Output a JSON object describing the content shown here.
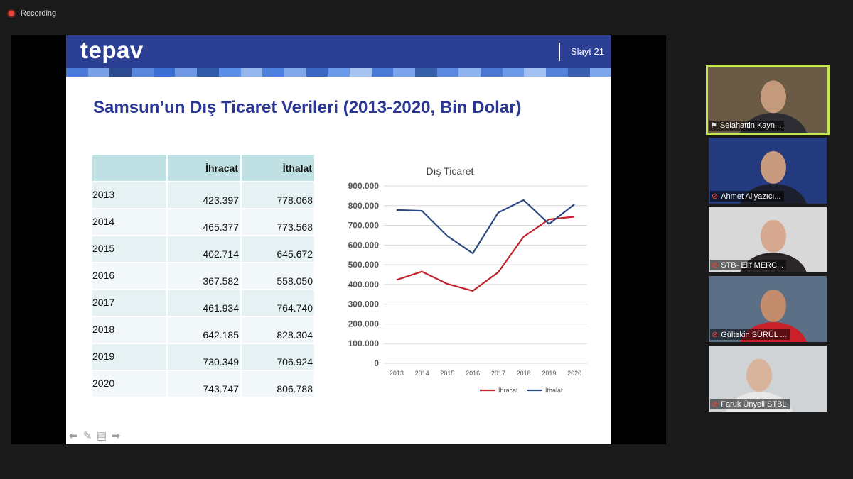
{
  "recording": {
    "label": "Recording"
  },
  "slide": {
    "logo": "tepav",
    "slide_number": "Slayt 21",
    "title": "Samsun’un Dış Ticaret Verileri (2013-2020, Bin Dolar)",
    "stripe_colors": [
      "#4b79d8",
      "#7aa0e8",
      "#2c4b8f",
      "#5a88dc",
      "#3b6fd1",
      "#6f97e4",
      "#2e5aa8",
      "#5b8ee6",
      "#93b6ee",
      "#4f81de",
      "#80a7ea",
      "#3a67c4",
      "#6a99ea",
      "#a6c2f0",
      "#4a7ad6",
      "#7ba4ec",
      "#355ea8",
      "#5c8ae0",
      "#8fb3ef",
      "#4b77d2",
      "#6c98e8",
      "#a3c0f2",
      "#5683da",
      "#3b5fb0",
      "#7ea6ec"
    ],
    "table": {
      "headers": [
        "",
        "İhracat",
        "İthalat"
      ],
      "rows": [
        {
          "year": "2013",
          "ihracat": "423.397",
          "ithalat": "778.068"
        },
        {
          "year": "2014",
          "ihracat": "465.377",
          "ithalat": "773.568"
        },
        {
          "year": "2015",
          "ihracat": "402.714",
          "ithalat": "645.672"
        },
        {
          "year": "2016",
          "ihracat": "367.582",
          "ithalat": "558.050"
        },
        {
          "year": "2017",
          "ihracat": "461.934",
          "ithalat": "764.740"
        },
        {
          "year": "2018",
          "ihracat": "642.185",
          "ithalat": "828.304"
        },
        {
          "year": "2019",
          "ihracat": "730.349",
          "ithalat": "706.924"
        },
        {
          "year": "2020",
          "ihracat": "743.747",
          "ithalat": "806.788"
        }
      ]
    }
  },
  "chart_data": {
    "type": "line",
    "title": "Dış Ticaret",
    "x": [
      "2013",
      "2014",
      "2015",
      "2016",
      "2017",
      "2018",
      "2019",
      "2020"
    ],
    "y_ticks": [
      "0",
      "100.000",
      "200.000",
      "300.000",
      "400.000",
      "500.000",
      "600.000",
      "700.000",
      "800.000",
      "900.000"
    ],
    "ylim": [
      0,
      900000
    ],
    "grid": true,
    "legend": "bottom",
    "series": [
      {
        "name": "İhracat",
        "color": "#c0232c",
        "values": [
          423397,
          465377,
          402714,
          367582,
          461934,
          642185,
          730349,
          743747
        ]
      },
      {
        "name": "İthalat",
        "color": "#2b4a7f",
        "values": [
          778068,
          773568,
          645672,
          558050,
          764740,
          828304,
          706924,
          806788
        ]
      }
    ]
  },
  "participants": [
    {
      "name": "Selahattin Kayn...",
      "active": true,
      "icon": "pin-icon",
      "bg": "#6b5a45",
      "face": "#c49a7c",
      "body": "#2d2d33"
    },
    {
      "name": "Ahmet Aliyazıcı...",
      "active": false,
      "icon": "mic-muted-icon",
      "bg": "#233a7e",
      "face": "#c79a7e",
      "body": "#1b1f2e"
    },
    {
      "name": "STB- Elif MERC...",
      "active": false,
      "icon": "mic-muted-icon",
      "bg": "#d8d8d8",
      "face": "#d6a890",
      "body": "#2a2626"
    },
    {
      "name": "Gültekin SÜRÜL ...",
      "active": false,
      "icon": "mic-muted-icon",
      "bg": "#5b7086",
      "face": "#c38c6d",
      "body": "#c9202a"
    },
    {
      "name": "Faruk Ünyeli STBL",
      "active": false,
      "icon": "mic-muted-icon",
      "bg": "#cfd3d6",
      "face": "#d9b49d",
      "body": "#e8e8e8"
    }
  ]
}
